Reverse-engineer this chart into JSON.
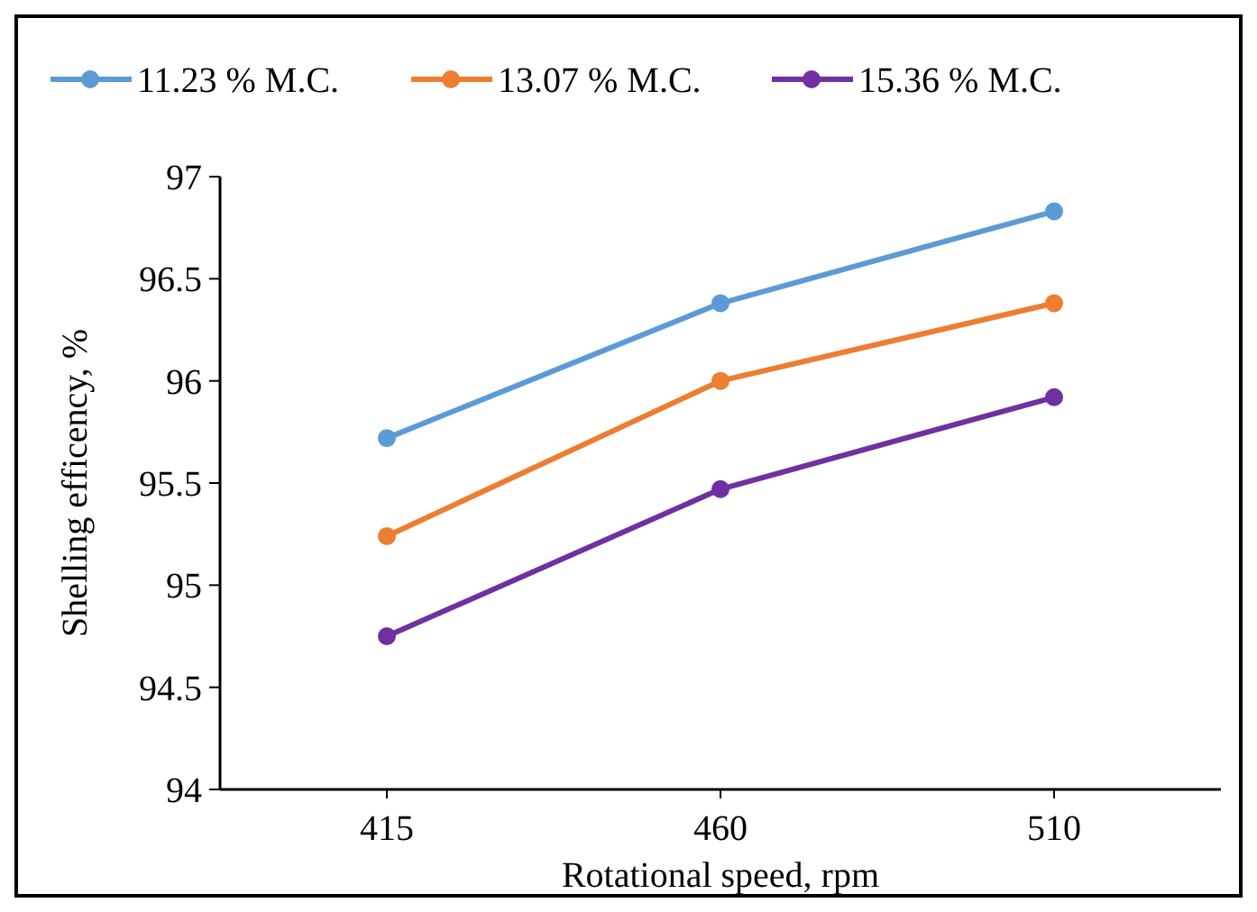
{
  "chart_data": {
    "type": "line",
    "xlabel": "Rotational speed, rpm",
    "ylabel": "Shelling efficency, %",
    "categories": [
      "415",
      "460",
      "510"
    ],
    "series": [
      {
        "name": "11.23 % M.C.",
        "color": "#5b9bd5",
        "values": [
          95.72,
          96.38,
          96.83
        ]
      },
      {
        "name": "13.07 % M.C.",
        "color": "#ed7d31",
        "values": [
          95.24,
          96.0,
          96.38
        ]
      },
      {
        "name": "15.36 % M.C.",
        "color": "#7030a0",
        "values": [
          94.75,
          95.47,
          95.92
        ]
      }
    ],
    "ylim": [
      94,
      97
    ],
    "yticks": [
      94,
      94.5,
      95,
      95.5,
      96,
      96.5,
      97
    ],
    "grid": false,
    "legend": "top",
    "marker": "circle",
    "line_style": "solid"
  }
}
